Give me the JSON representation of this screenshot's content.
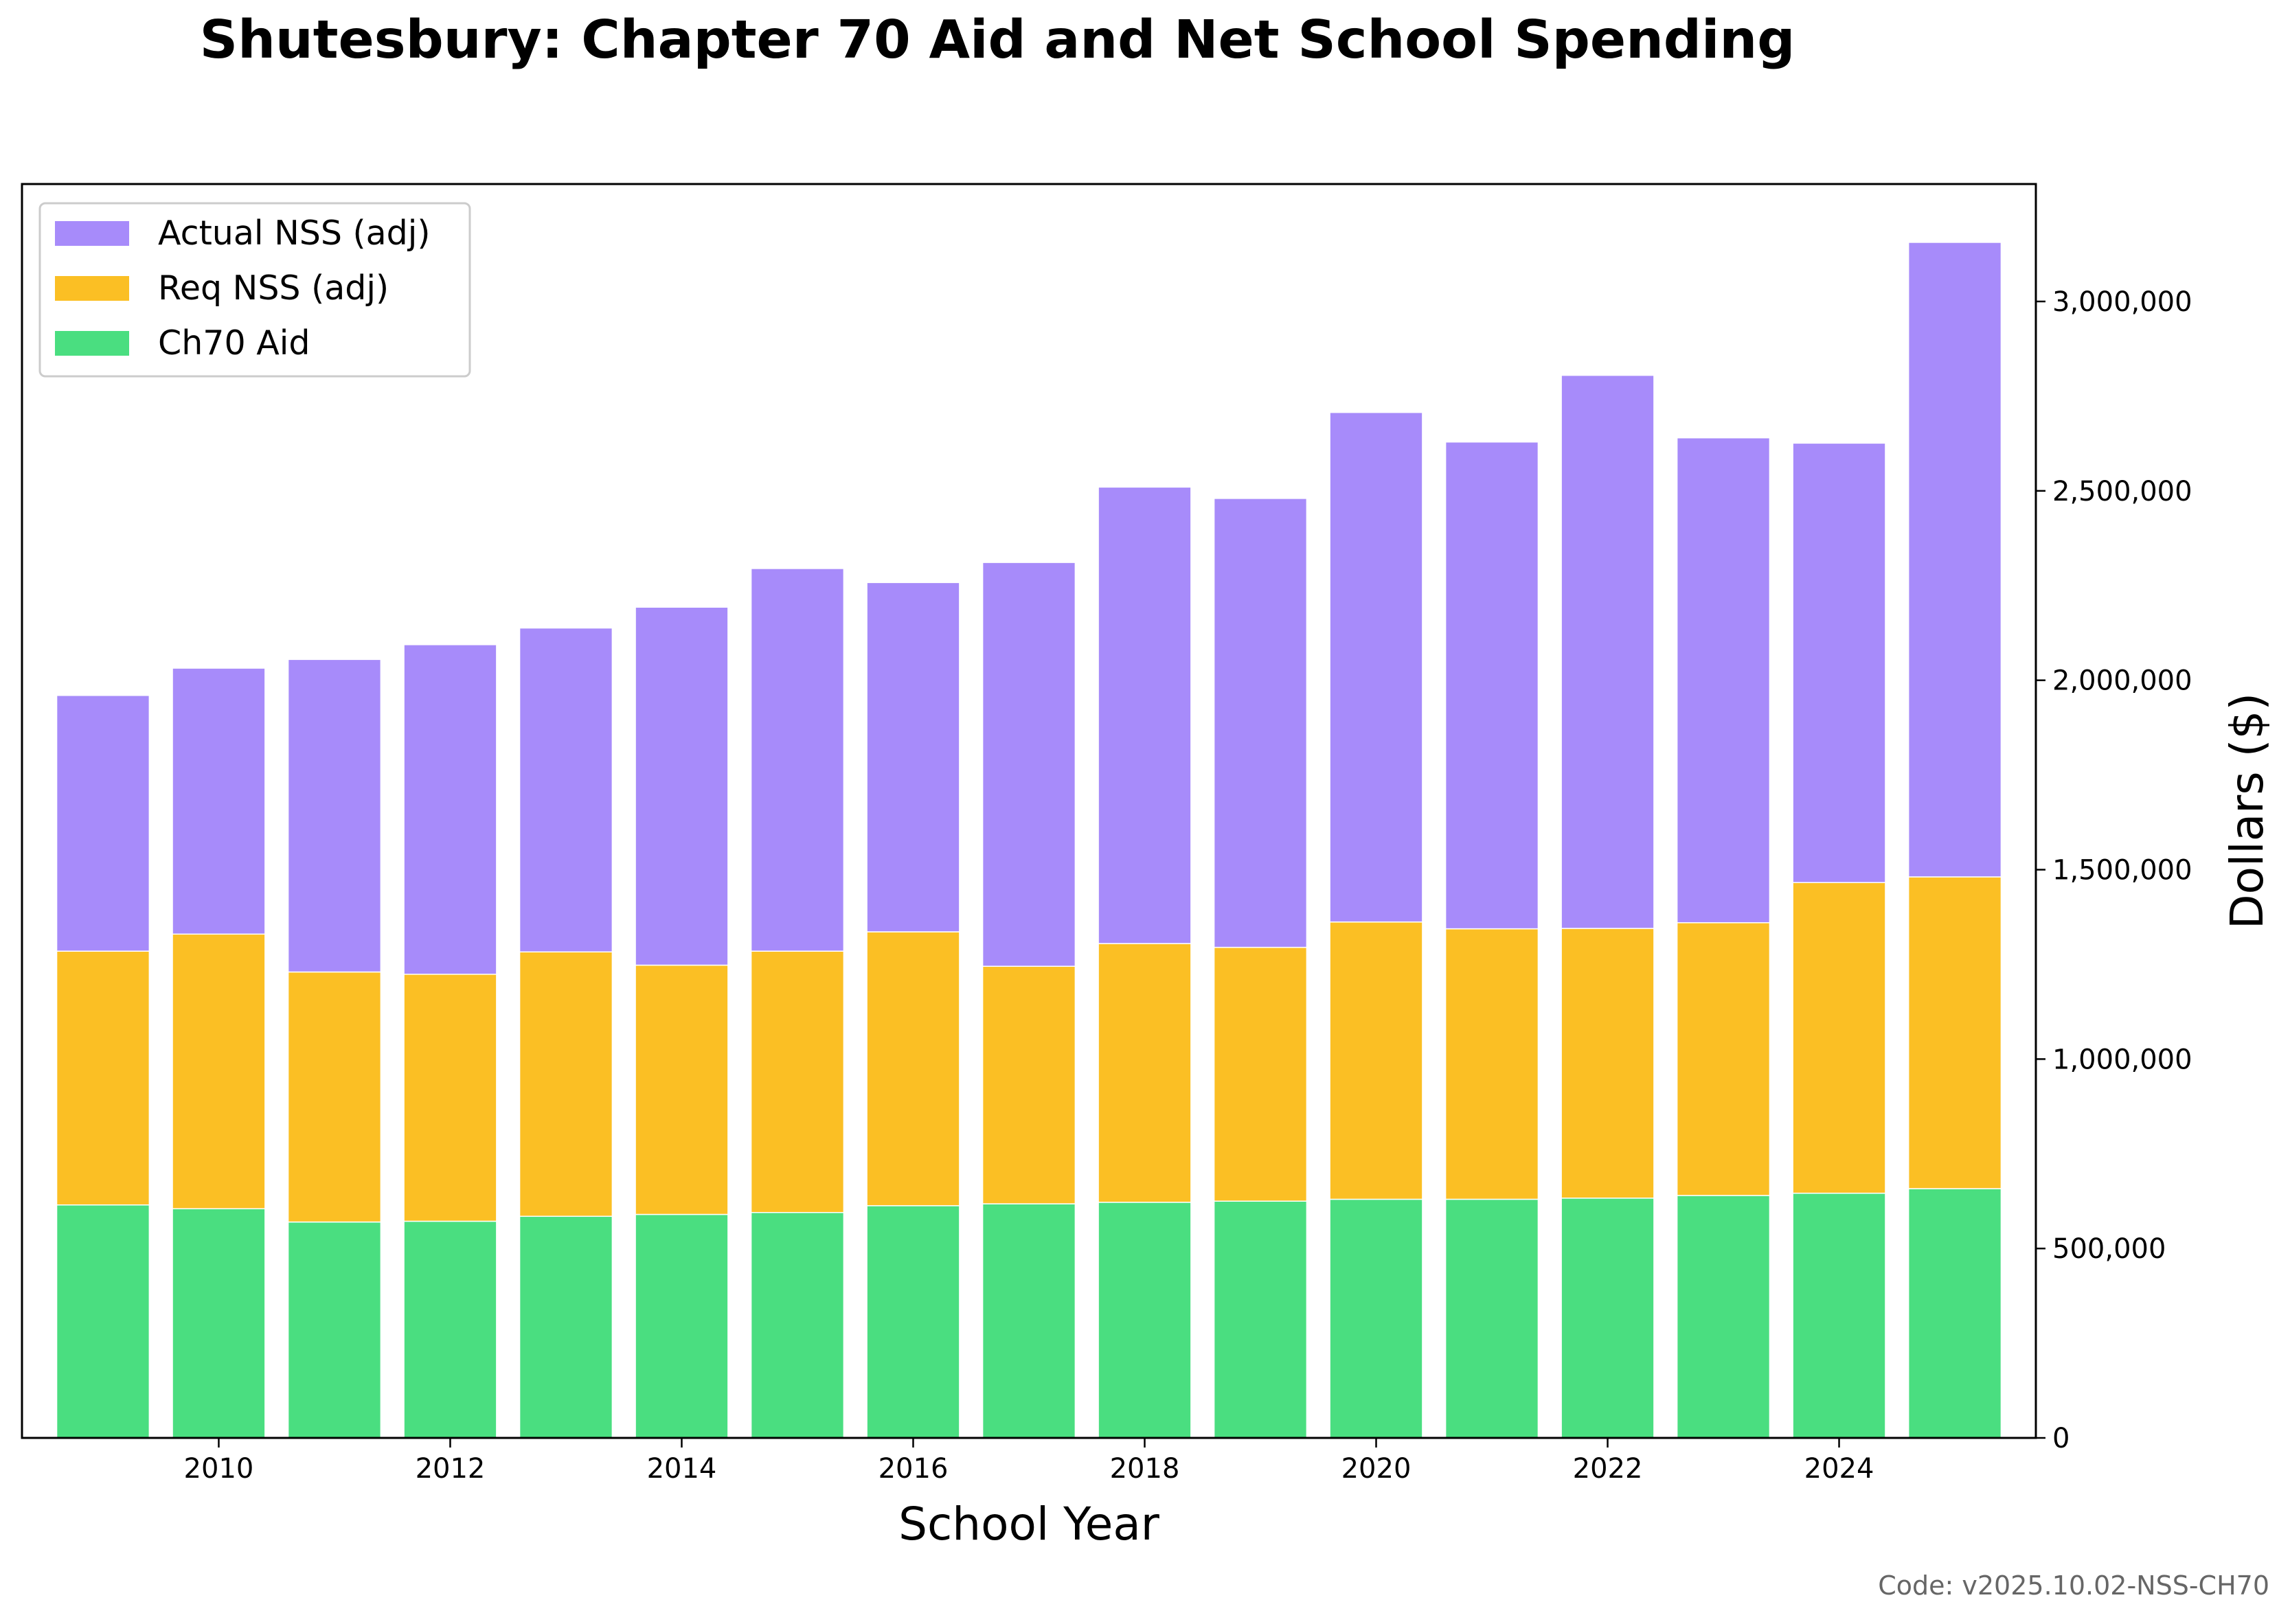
{
  "chart_data": {
    "type": "bar",
    "stacked": true,
    "title": "Shutesbury: Chapter 70 Aid and Net School Spending",
    "xlabel": "School Year",
    "ylabel": "Dollars ($)",
    "ylim": [
      0,
      3310000
    ],
    "xlim": [
      2008.3,
      2025.7
    ],
    "y_axis_side": "right",
    "grid": false,
    "legend_position": "top-left",
    "x": [
      2009,
      2010,
      2011,
      2012,
      2013,
      2014,
      2015,
      2016,
      2017,
      2018,
      2019,
      2020,
      2021,
      2022,
      2023,
      2024,
      2025
    ],
    "x_ticks": [
      2010,
      2012,
      2014,
      2016,
      2018,
      2020,
      2022,
      2024
    ],
    "x_tick_labels": [
      "2010",
      "2012",
      "2014",
      "2016",
      "2018",
      "2020",
      "2022",
      "2024"
    ],
    "y_ticks": [
      0,
      500000,
      1000000,
      1500000,
      2000000,
      2500000,
      3000000
    ],
    "y_tick_labels": [
      "0",
      "500,000",
      "1,000,000",
      "1,500,000",
      "2,000,000",
      "2,500,000",
      "3,000,000"
    ],
    "series": [
      {
        "name": "Ch70 Aid",
        "color": "#4ade80",
        "values": [
          615000,
          605000,
          570000,
          572000,
          585000,
          590000,
          595000,
          613000,
          618000,
          622000,
          625000,
          630000,
          630000,
          633000,
          640000,
          646000,
          658000
        ]
      },
      {
        "name": "Req NSS (adj)",
        "color": "#fbbf24",
        "values": [
          670000,
          725000,
          660000,
          652000,
          698000,
          658000,
          690000,
          723000,
          627000,
          683000,
          670000,
          732000,
          714000,
          712000,
          720000,
          820000,
          823000
        ]
      },
      {
        "name": "Actual NSS (adj)",
        "color": "#a78bfa",
        "values": [
          675000,
          702000,
          825000,
          870000,
          855000,
          945000,
          1010000,
          922000,
          1066000,
          1205000,
          1185000,
          1345000,
          1285000,
          1460000,
          1280000,
          1160000,
          1675000
        ]
      }
    ],
    "legend_order": [
      "Actual NSS (adj)",
      "Req NSS (adj)",
      "Ch70 Aid"
    ]
  },
  "footer": {
    "code_label": "Code: v2025.10.02-NSS-CH70"
  }
}
